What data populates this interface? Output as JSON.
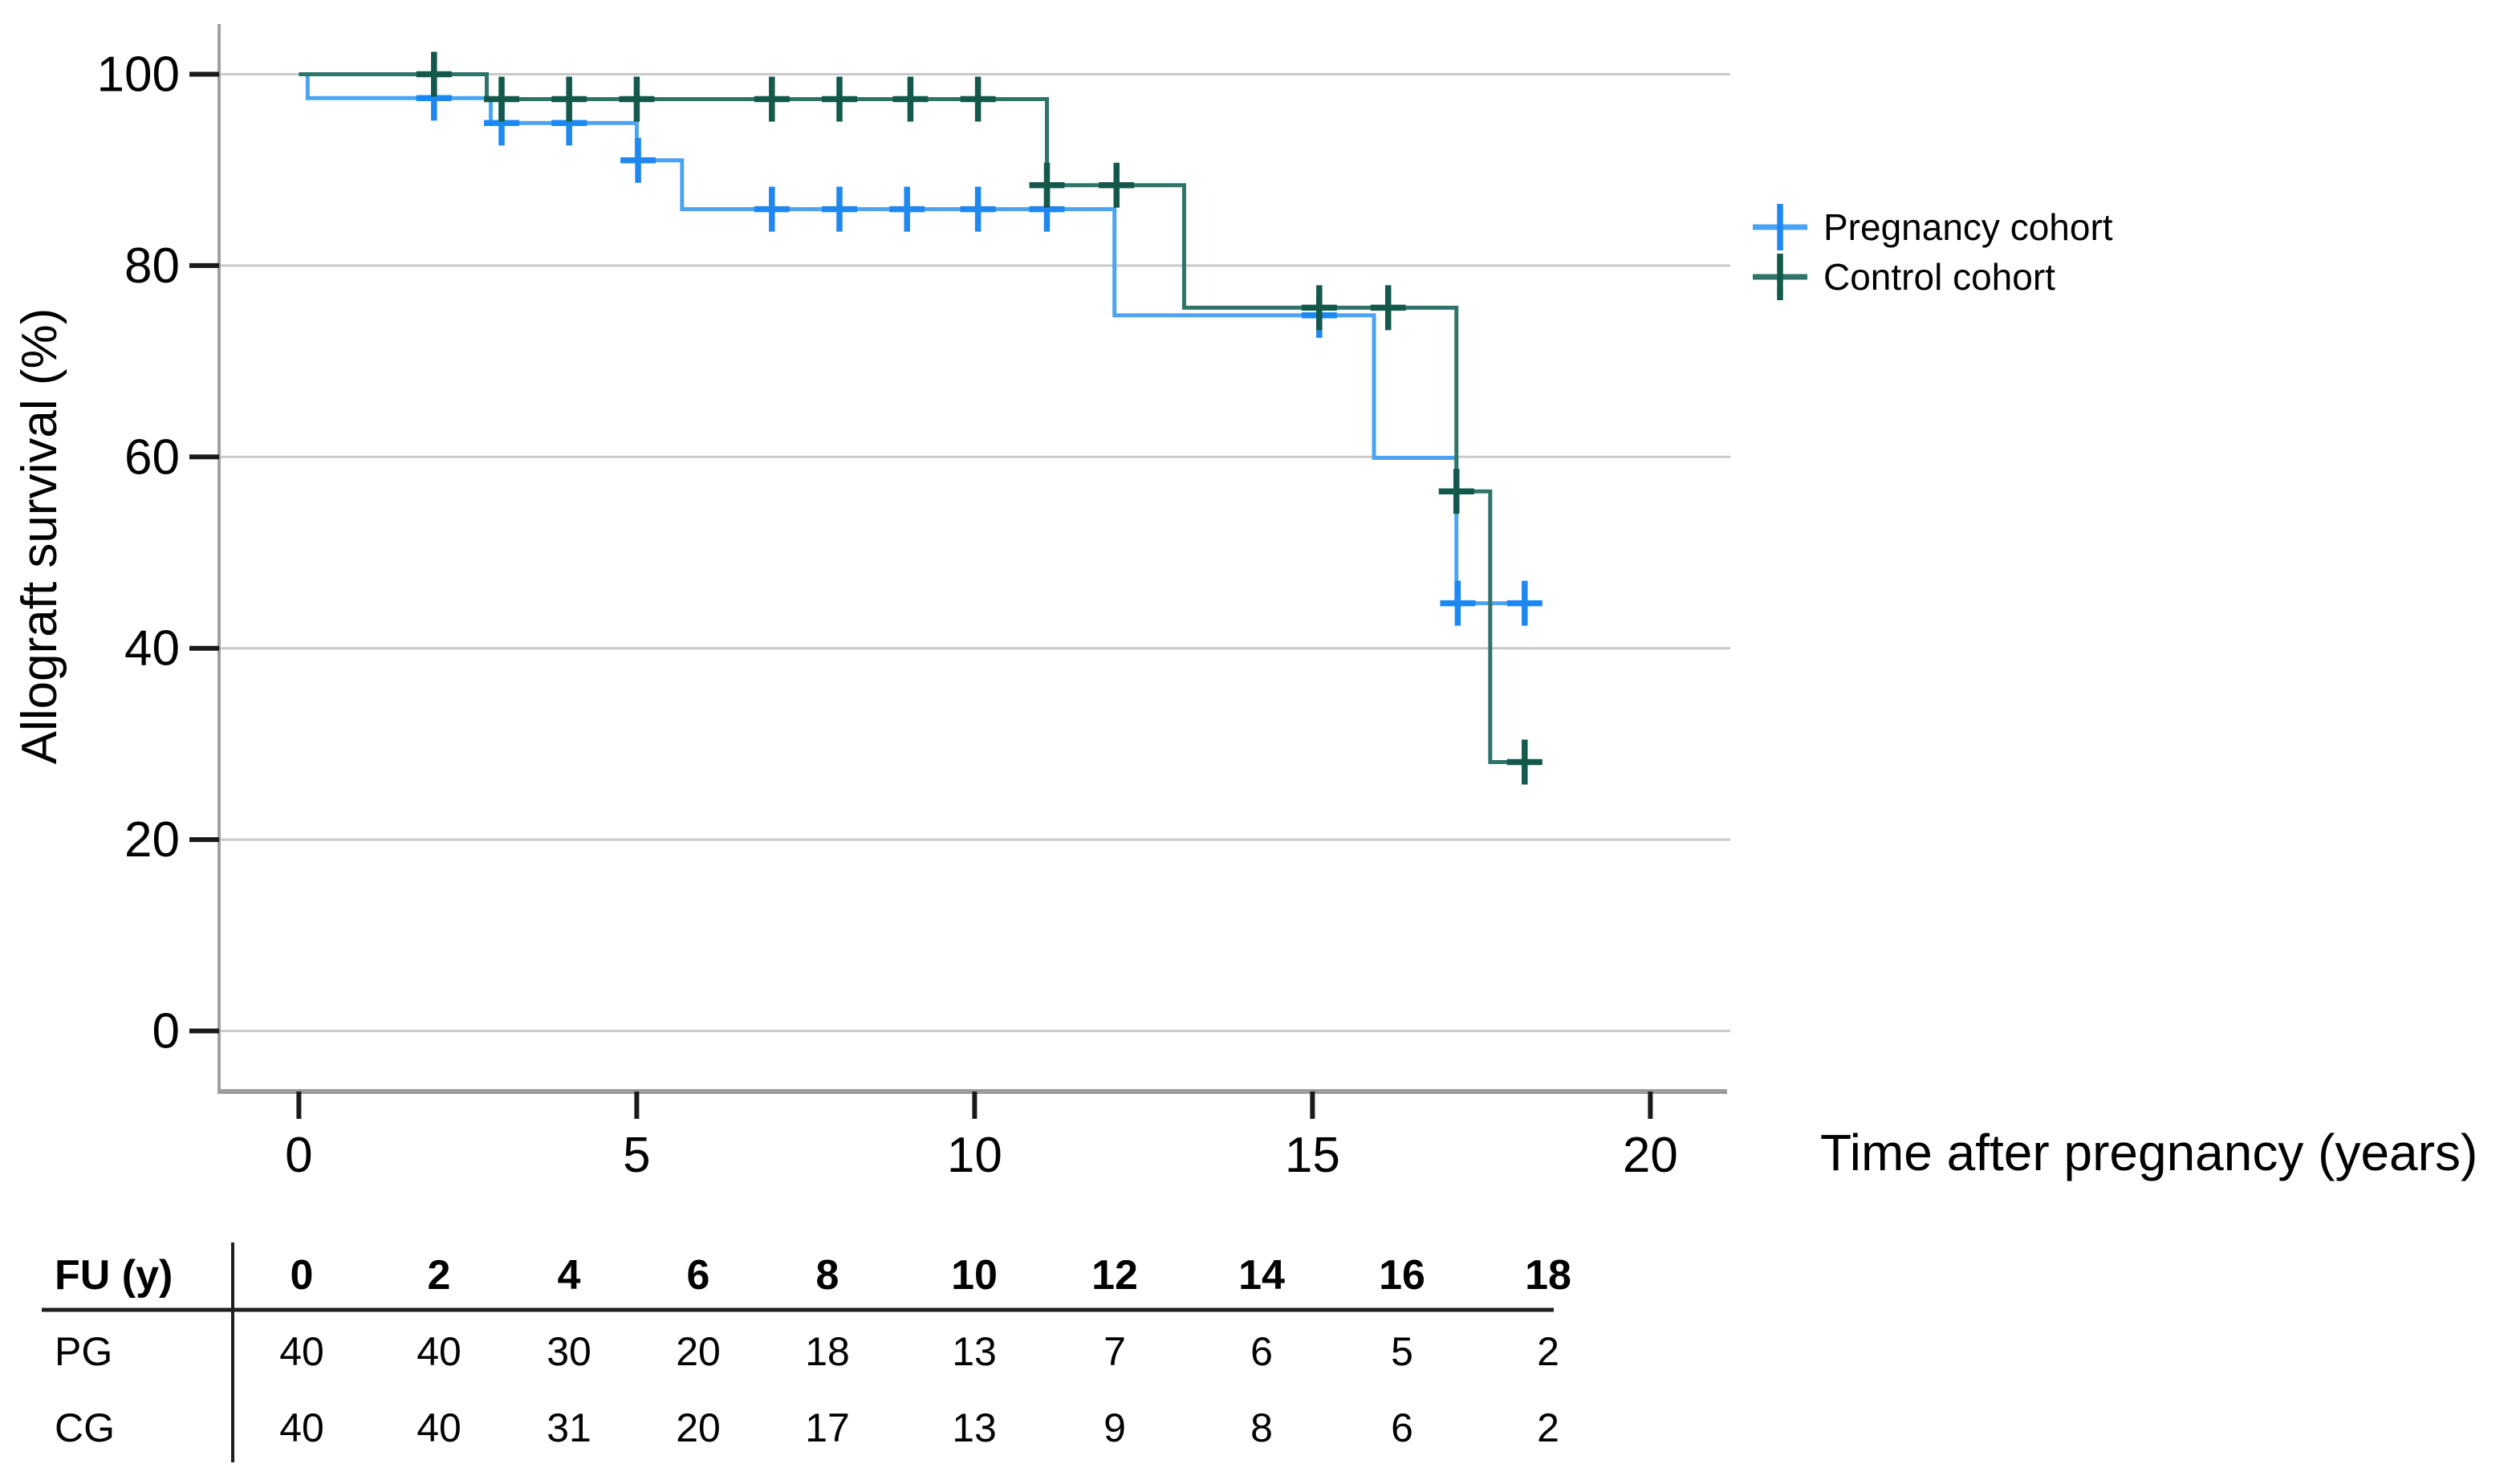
{
  "figure": {
    "background": "#ffffff"
  },
  "chart_data": {
    "type": "line",
    "subtype": "kaplan-meier-step",
    "title": "",
    "xlabel": "Time after pregnancy (years)",
    "ylabel": "Allograft survival (%)",
    "xlim": [
      0,
      20
    ],
    "ylim": [
      0,
      100
    ],
    "x_ticks": [
      0,
      5,
      10,
      15,
      20
    ],
    "y_ticks": [
      100,
      80,
      60,
      40,
      20,
      0
    ],
    "grid": "horizontal",
    "gridline_color": "#c9c9c9",
    "axis_color": "#a0a0a0",
    "tick_color": "#1a1a1a",
    "legend_position": "right",
    "series": [
      {
        "name": "Pregnancy cohort",
        "color": "#4ba3f2",
        "censor_color": "#1e88f0",
        "steps": [
          [
            0,
            100
          ],
          [
            0.13,
            97.5
          ],
          [
            2.84,
            94.9
          ],
          [
            5.0,
            91.0
          ],
          [
            5.67,
            85.9
          ],
          [
            12.07,
            74.8
          ],
          [
            15.91,
            59.9
          ],
          [
            17.13,
            44.7
          ]
        ],
        "end_x": 18.32,
        "censors": [
          [
            2.0,
            97.5
          ],
          [
            3.0,
            94.9
          ],
          [
            4.0,
            94.9
          ],
          [
            5.02,
            91.0
          ],
          [
            7.0,
            85.9
          ],
          [
            8.0,
            85.9
          ],
          [
            9.0,
            85.9
          ],
          [
            10.05,
            85.9
          ],
          [
            11.07,
            85.9
          ],
          [
            15.1,
            74.8
          ],
          [
            17.15,
            44.7
          ],
          [
            18.14,
            44.7
          ]
        ]
      },
      {
        "name": "Control cohort",
        "color": "#2f7468",
        "censor_color": "#14584c",
        "steps": [
          [
            0,
            100
          ],
          [
            2.78,
            97.4
          ],
          [
            11.07,
            88.4
          ],
          [
            13.1,
            75.6
          ],
          [
            17.13,
            56.4
          ],
          [
            17.63,
            28.1
          ]
        ],
        "end_x": 18.35,
        "censors": [
          [
            2.0,
            100
          ],
          [
            3.0,
            97.4
          ],
          [
            4.0,
            97.4
          ],
          [
            5.0,
            97.4
          ],
          [
            7.0,
            97.4
          ],
          [
            8.0,
            97.4
          ],
          [
            9.05,
            97.4
          ],
          [
            10.05,
            97.4
          ],
          [
            11.07,
            88.4
          ],
          [
            12.1,
            88.4
          ],
          [
            15.1,
            75.6
          ],
          [
            16.12,
            75.6
          ],
          [
            17.13,
            56.4
          ],
          [
            18.14,
            28.1
          ]
        ]
      }
    ]
  },
  "legend": {
    "items": [
      {
        "label": "Pregnancy cohort"
      },
      {
        "label": "Control cohort"
      }
    ]
  },
  "risk_table": {
    "header_label": "FU (y)",
    "time_points": [
      "0",
      "2",
      "4",
      "6",
      "8",
      "10",
      "12",
      "14",
      "16",
      "18"
    ],
    "rows": [
      {
        "label": "PG",
        "values": [
          "40",
          "40",
          "30",
          "20",
          "18",
          "13",
          "7",
          "6",
          "5",
          "2"
        ]
      },
      {
        "label": "CG",
        "values": [
          "40",
          "40",
          "31",
          "20",
          "17",
          "13",
          "9",
          "8",
          "6",
          "2"
        ]
      }
    ]
  }
}
